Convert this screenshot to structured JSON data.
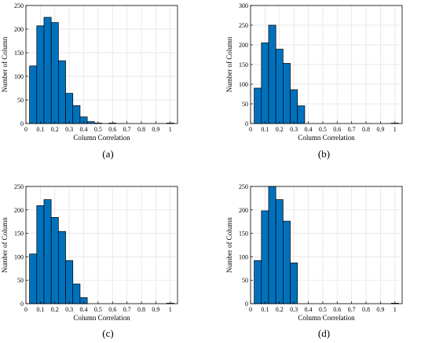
{
  "chart_data": [
    {
      "type": "bar",
      "panel_label": "(a)",
      "xlabel": "Column Correlation",
      "ylabel": "Number of Column",
      "xlim": [
        0,
        1.05
      ],
      "ylim": [
        0,
        250
      ],
      "xticks": [
        "0",
        "0.1",
        "0.2",
        "0.3",
        "0.4",
        "0.5",
        "0.6",
        "0.7",
        "0.8",
        "0.9",
        "1"
      ],
      "yticks": [
        "0",
        "50",
        "100",
        "150",
        "200",
        "250"
      ],
      "bin_width": 0.05,
      "bin_starts": [
        0.025,
        0.075,
        0.125,
        0.175,
        0.225,
        0.275,
        0.325,
        0.375,
        0.425,
        0.475,
        0.525,
        0.575,
        0.975
      ],
      "values": [
        122,
        207,
        225,
        214,
        133,
        64,
        38,
        14,
        4,
        1,
        0,
        1,
        1
      ]
    },
    {
      "type": "bar",
      "panel_label": "(b)",
      "xlabel": "Column Correlation",
      "ylabel": "Number of Column",
      "xlim": [
        0,
        1.05
      ],
      "ylim": [
        0,
        300
      ],
      "xticks": [
        "0",
        "0.1",
        "0.2",
        "0.3",
        "0.4",
        "0.5",
        "0.6",
        "0.7",
        "0.8",
        "0.9",
        "1"
      ],
      "yticks": [
        "0",
        "50",
        "100",
        "150",
        "200",
        "250",
        "300"
      ],
      "bin_width": 0.05,
      "bin_starts": [
        0.025,
        0.075,
        0.125,
        0.175,
        0.225,
        0.275,
        0.325,
        0.975
      ],
      "values": [
        90,
        205,
        250,
        189,
        153,
        86,
        45,
        1
      ]
    },
    {
      "type": "bar",
      "panel_label": "(c)",
      "xlabel": "Column Correlation",
      "ylabel": "Number of Column",
      "xlim": [
        0,
        1.05
      ],
      "ylim": [
        0,
        250
      ],
      "xticks": [
        "0",
        "0.1",
        "0.2",
        "0.3",
        "0.4",
        "0.5",
        "0.6",
        "0.7",
        "0.8",
        "0.9",
        "1"
      ],
      "yticks": [
        "0",
        "50",
        "100",
        "150",
        "200",
        "250"
      ],
      "bin_width": 0.05,
      "bin_starts": [
        0.025,
        0.075,
        0.125,
        0.175,
        0.225,
        0.275,
        0.325,
        0.375,
        0.975
      ],
      "values": [
        106,
        209,
        222,
        184,
        154,
        92,
        42,
        13,
        1
      ]
    },
    {
      "type": "bar",
      "panel_label": "(d)",
      "xlabel": "Column Correlation",
      "ylabel": "Number of Column",
      "xlim": [
        0,
        1.05
      ],
      "ylim": [
        0,
        250
      ],
      "xticks": [
        "0",
        "0.1",
        "0.2",
        "0.3",
        "0.4",
        "0.5",
        "0.6",
        "0.7",
        "0.8",
        "0.9",
        "1"
      ],
      "yticks": [
        "0",
        "50",
        "100",
        "150",
        "200",
        "250"
      ],
      "bin_width": 0.05,
      "bin_starts": [
        0.025,
        0.075,
        0.125,
        0.175,
        0.225,
        0.275,
        0.975
      ],
      "values": [
        92,
        198,
        250,
        222,
        176,
        87,
        1
      ]
    }
  ],
  "colors": {
    "bar_fill": "#0072bd",
    "bar_edge": "#000000",
    "grid": "#e0e0e0"
  }
}
